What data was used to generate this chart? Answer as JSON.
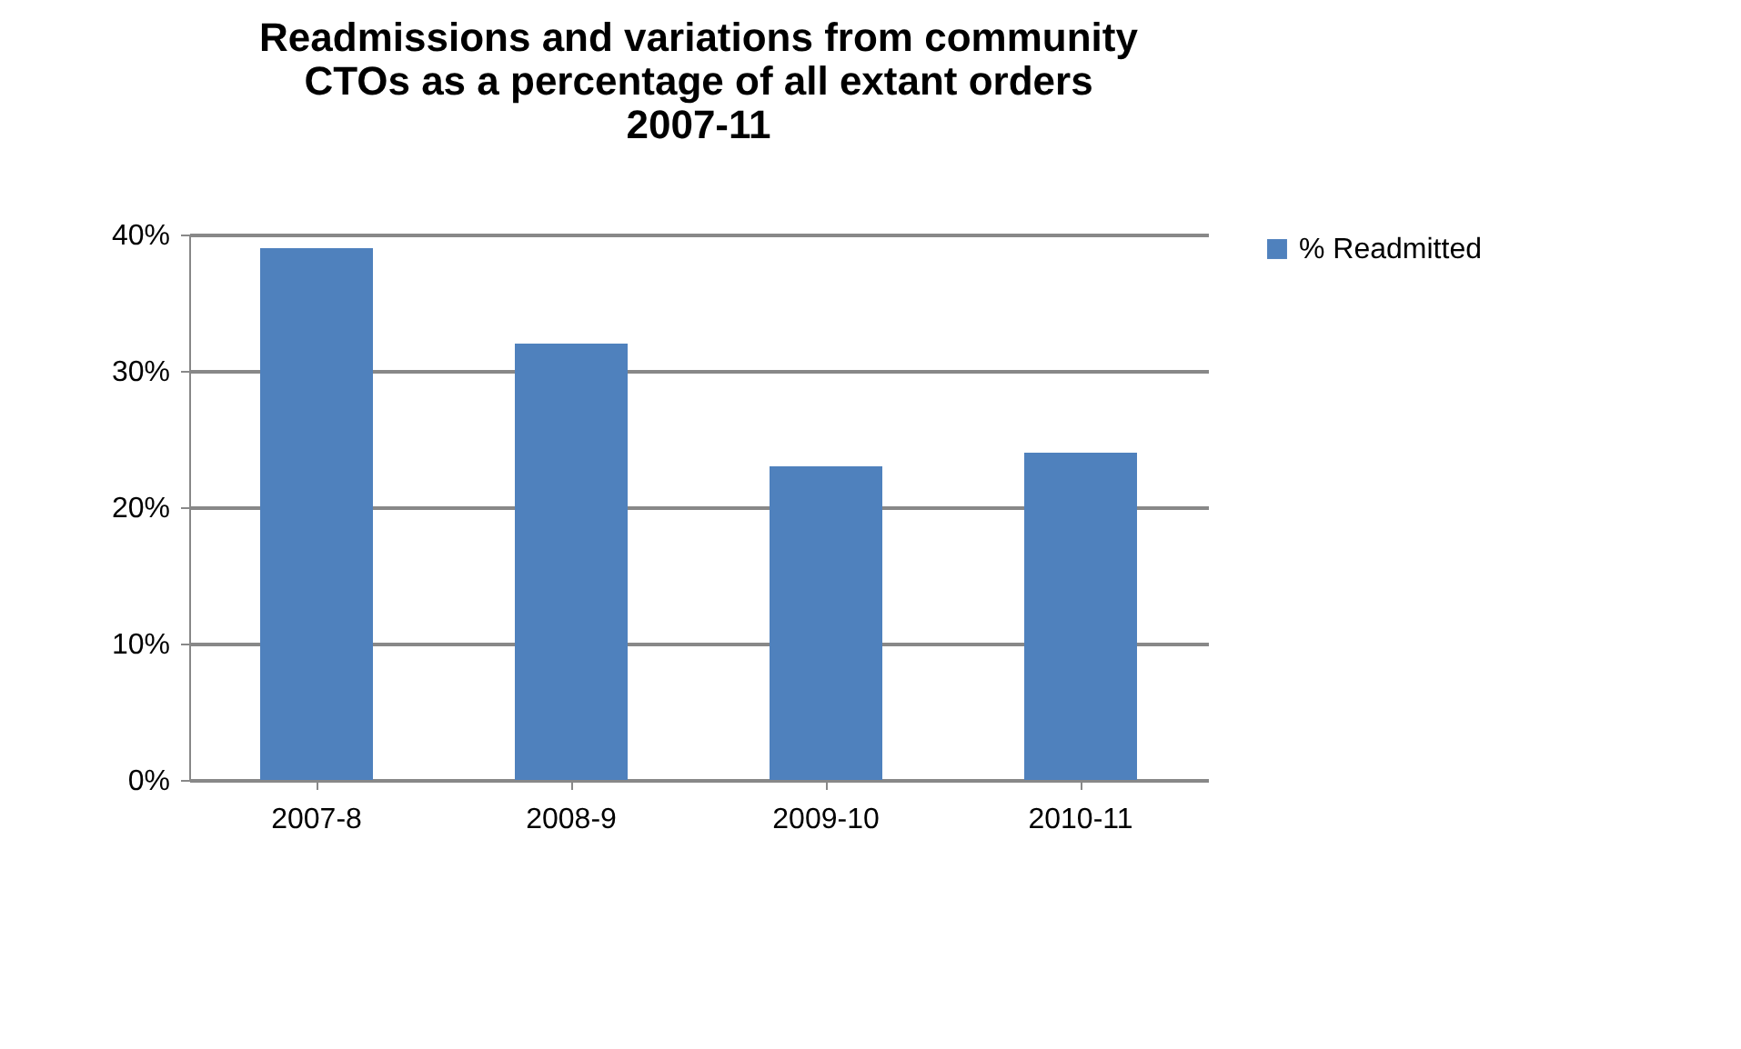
{
  "chart_data": {
    "type": "bar",
    "title": "Readmissions and variations from community\nCTOs as a percentage of all extant orders\n2007-11",
    "categories": [
      "2007-8",
      "2008-9",
      "2009-10",
      "2010-11"
    ],
    "series": [
      {
        "name": "% Readmitted",
        "color": "#4f81bd",
        "values": [
          39,
          32,
          23,
          24
        ]
      }
    ],
    "ylim": [
      0,
      40
    ],
    "yticks": [
      {
        "value": 0,
        "label": "0%"
      },
      {
        "value": 10,
        "label": "10%"
      },
      {
        "value": 20,
        "label": "20%"
      },
      {
        "value": 30,
        "label": "30%"
      },
      {
        "value": 40,
        "label": "40%"
      }
    ],
    "grid": "y",
    "legend": "right"
  }
}
